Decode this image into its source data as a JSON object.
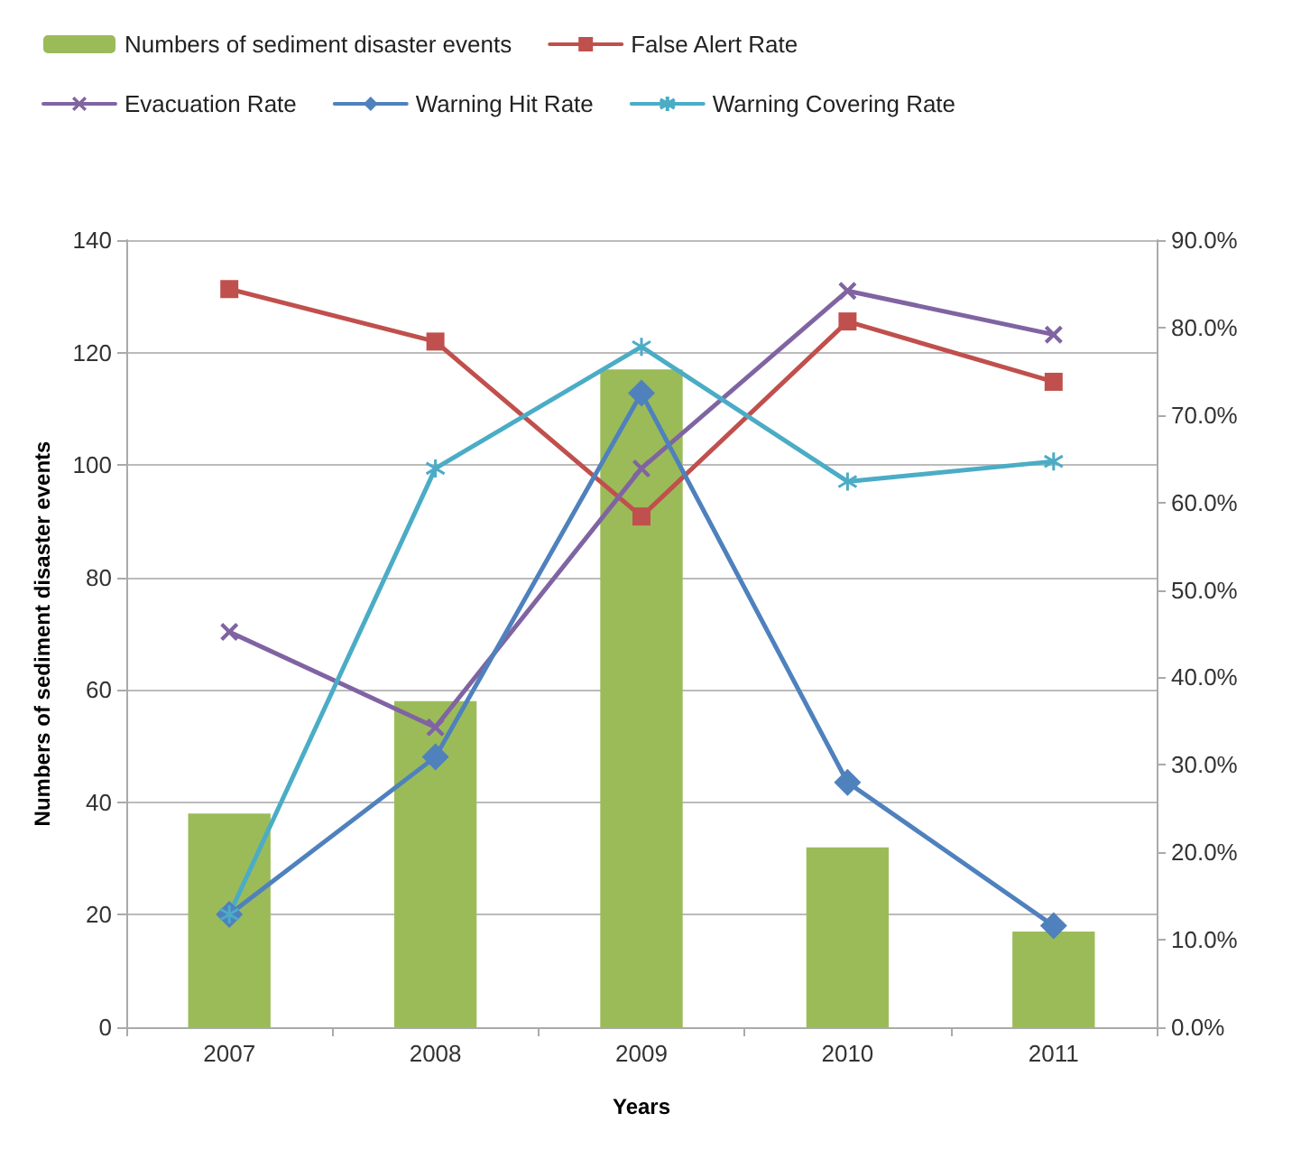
{
  "chart_data": {
    "type": "bar",
    "xlabel": "Years",
    "ylabel": "Numbers of sediment disaster events",
    "categories": [
      "2007",
      "2008",
      "2009",
      "2010",
      "2011"
    ],
    "series": [
      {
        "name": "Numbers of sediment disaster events",
        "color": "#9bbb59",
        "values": [
          38,
          58,
          117,
          32,
          17
        ]
      },
      {
        "name": "False Alert Rate",
        "type": "line",
        "axis": "y2",
        "marker": "square",
        "color": "#c0504d",
        "values": [
          84.4,
          78.4,
          58.4,
          80.7,
          73.8
        ]
      },
      {
        "name": "Evacuation Rate",
        "type": "line",
        "axis": "y2",
        "marker": "cross",
        "color": "#8064a2",
        "values": [
          45.2,
          34.3,
          63.9,
          84.2,
          79.2
        ]
      },
      {
        "name": "Warning Hit Rate",
        "type": "line",
        "axis": "y2",
        "marker": "diamond",
        "color": "#4f81bd",
        "values": [
          12.9,
          30.9,
          72.5,
          28.0,
          11.6
        ]
      },
      {
        "name": "Warning Covering Rate",
        "type": "line",
        "axis": "y2",
        "marker": "star",
        "color": "#4bacc6",
        "values": [
          12.9,
          63.9,
          77.8,
          62.4,
          64.7
        ]
      }
    ],
    "ylim": [
      0,
      140
    ],
    "yticks": [
      0,
      20,
      40,
      60,
      80,
      100,
      120,
      140
    ],
    "y2lim": [
      0,
      90
    ],
    "y2ticks": [
      {
        "value": 0,
        "label": "0.0%"
      },
      {
        "value": 10,
        "label": "10.0%"
      },
      {
        "value": 20,
        "label": "20.0%"
      },
      {
        "value": 30,
        "label": "30.0%"
      },
      {
        "value": 40,
        "label": "40.0%"
      },
      {
        "value": 50,
        "label": "50.0%"
      },
      {
        "value": 60,
        "label": "60.0%"
      },
      {
        "value": 70,
        "label": "70.0%"
      },
      {
        "value": 80,
        "label": "80.0%"
      },
      {
        "value": 90,
        "label": "90.0%"
      }
    ],
    "grid": "y",
    "legend": "top left",
    "line_style": "solid"
  }
}
